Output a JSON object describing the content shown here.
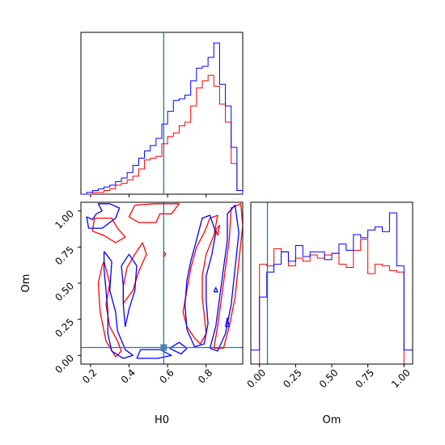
{
  "chart_data": [
    {
      "type": "histogram",
      "panel": "H0 marginal",
      "xlim": [
        0.15,
        0.99
      ],
      "x_ticks": [
        0.2,
        0.4,
        0.6,
        0.8
      ],
      "truth": 0.58,
      "series": [
        {
          "color": "#ff0000",
          "bin_edges": [
            0.15,
            0.18,
            0.21,
            0.24,
            0.27,
            0.3,
            0.33,
            0.36,
            0.39,
            0.42,
            0.45,
            0.48,
            0.51,
            0.54,
            0.57,
            0.6,
            0.63,
            0.66,
            0.69,
            0.72,
            0.75,
            0.78,
            0.81,
            0.84,
            0.87,
            0.9,
            0.93,
            0.96,
            0.99
          ],
          "counts": [
            0,
            0,
            1,
            1,
            2,
            3,
            5,
            6,
            8,
            10,
            14,
            19,
            20,
            21,
            28,
            32,
            34,
            38,
            40,
            49,
            59,
            63,
            66,
            60,
            50,
            40,
            17,
            2
          ]
        },
        {
          "color": "#0000ff",
          "bin_edges": [
            0.15,
            0.18,
            0.21,
            0.24,
            0.27,
            0.3,
            0.33,
            0.36,
            0.39,
            0.42,
            0.45,
            0.48,
            0.51,
            0.54,
            0.57,
            0.6,
            0.63,
            0.66,
            0.69,
            0.72,
            0.75,
            0.78,
            0.81,
            0.84,
            0.87,
            0.9,
            0.93,
            0.96,
            0.99
          ],
          "counts": [
            0,
            1,
            2,
            3,
            4,
            5,
            7,
            9,
            12,
            16,
            20,
            24,
            27,
            31,
            39,
            46,
            52,
            53,
            55,
            63,
            70,
            71,
            76,
            84,
            61,
            49,
            26,
            2
          ]
        }
      ]
    },
    {
      "type": "contour",
      "panel": "H0 vs Om",
      "xlabel": "H0",
      "ylabel": "Om",
      "xlim": [
        0.15,
        0.99
      ],
      "ylim": [
        -0.06,
        1.06
      ],
      "x_ticks": [
        0.2,
        0.4,
        0.6,
        0.8
      ],
      "y_ticks": [
        0.0,
        0.25,
        0.5,
        0.75,
        1.0
      ],
      "truth": {
        "H0": 0.58,
        "Om": 0.055
      },
      "series": [
        {
          "color": "#ff0000",
          "contours": [
            [
              [
                0.43,
                1.04
              ],
              [
                0.53,
                1.05
              ],
              [
                0.66,
                1.05
              ],
              [
                0.62,
                0.98
              ],
              [
                0.56,
                0.98
              ],
              [
                0.54,
                0.92
              ],
              [
                0.45,
                0.92
              ],
              [
                0.4,
                0.96
              ],
              [
                0.43,
                1.04
              ]
            ],
            [
              [
                0.22,
                0.95
              ],
              [
                0.31,
                0.95
              ],
              [
                0.34,
                0.88
              ],
              [
                0.38,
                0.82
              ],
              [
                0.33,
                0.78
              ],
              [
                0.27,
                0.83
              ],
              [
                0.21,
                0.86
              ],
              [
                0.22,
                0.95
              ]
            ],
            [
              [
                0.27,
                0.65
              ],
              [
                0.3,
                0.5
              ],
              [
                0.28,
                0.35
              ],
              [
                0.3,
                0.2
              ],
              [
                0.34,
                0.1
              ],
              [
                0.36,
                0.03
              ],
              [
                0.33,
                -0.01
              ],
              [
                0.28,
                0.1
              ],
              [
                0.25,
                0.3
              ],
              [
                0.24,
                0.5
              ],
              [
                0.26,
                0.62
              ],
              [
                0.27,
                0.65
              ]
            ],
            [
              [
                0.39,
                0.61
              ],
              [
                0.43,
                0.7
              ],
              [
                0.47,
                0.78
              ],
              [
                0.49,
                0.7
              ],
              [
                0.45,
                0.58
              ],
              [
                0.42,
                0.45
              ],
              [
                0.37,
                0.36
              ],
              [
                0.37,
                0.48
              ],
              [
                0.39,
                0.61
              ]
            ],
            [
              [
                0.74,
                0.12
              ],
              [
                0.7,
                0.2
              ],
              [
                0.68,
                0.3
              ],
              [
                0.7,
                0.45
              ],
              [
                0.72,
                0.6
              ],
              [
                0.75,
                0.75
              ],
              [
                0.79,
                0.85
              ],
              [
                0.82,
                0.95
              ],
              [
                0.86,
                0.97
              ],
              [
                0.84,
                0.83
              ],
              [
                0.8,
                0.7
              ],
              [
                0.78,
                0.55
              ],
              [
                0.78,
                0.4
              ],
              [
                0.79,
                0.28
              ],
              [
                0.8,
                0.15
              ],
              [
                0.77,
                0.08
              ],
              [
                0.74,
                0.12
              ]
            ],
            [
              [
                0.84,
                0.05
              ],
              [
                0.86,
                0.2
              ],
              [
                0.88,
                0.4
              ],
              [
                0.9,
                0.6
              ],
              [
                0.92,
                0.8
              ],
              [
                0.93,
                1.02
              ],
              [
                0.98,
                1.05
              ],
              [
                0.99,
                0.9
              ],
              [
                0.97,
                0.65
              ],
              [
                0.95,
                0.4
              ],
              [
                0.92,
                0.2
              ],
              [
                0.89,
                0.05
              ],
              [
                0.84,
                0.05
              ]
            ],
            [
              [
                0.85,
                0.87
              ],
              [
                0.87,
                0.9
              ],
              [
                0.86,
                0.83
              ],
              [
                0.85,
                0.87
              ]
            ],
            [
              [
                0.58,
                0.72
              ],
              [
                0.59,
                0.7
              ],
              [
                0.58,
                0.68
              ],
              [
                0.58,
                0.72
              ]
            ]
          ]
        },
        {
          "color": "#0000ff",
          "contours": [
            [
              [
                0.18,
                0.96
              ],
              [
                0.21,
                0.94
              ],
              [
                0.23,
                0.98
              ],
              [
                0.26,
                1.0
              ],
              [
                0.24,
                1.05
              ],
              [
                0.3,
                1.05
              ],
              [
                0.35,
                1.02
              ],
              [
                0.33,
                0.95
              ],
              [
                0.26,
                0.88
              ],
              [
                0.19,
                0.88
              ],
              [
                0.18,
                0.96
              ]
            ],
            [
              [
                0.27,
                0.72
              ],
              [
                0.31,
                0.65
              ],
              [
                0.3,
                0.45
              ],
              [
                0.33,
                0.3
              ],
              [
                0.34,
                0.17
              ],
              [
                0.38,
                0.04
              ],
              [
                0.42,
                0.0
              ],
              [
                0.37,
                -0.02
              ],
              [
                0.31,
                0.03
              ],
              [
                0.29,
                0.15
              ],
              [
                0.29,
                0.3
              ],
              [
                0.28,
                0.45
              ],
              [
                0.27,
                0.6
              ],
              [
                0.27,
                0.72
              ]
            ],
            [
              [
                0.36,
                0.62
              ],
              [
                0.4,
                0.7
              ],
              [
                0.44,
                0.62
              ],
              [
                0.43,
                0.45
              ],
              [
                0.4,
                0.32
              ],
              [
                0.38,
                0.2
              ],
              [
                0.37,
                0.35
              ],
              [
                0.37,
                0.48
              ],
              [
                0.36,
                0.62
              ]
            ],
            [
              [
                0.7,
                0.18
              ],
              [
                0.69,
                0.35
              ],
              [
                0.7,
                0.52
              ],
              [
                0.72,
                0.65
              ],
              [
                0.75,
                0.8
              ],
              [
                0.78,
                0.95
              ],
              [
                0.82,
                0.97
              ],
              [
                0.85,
                0.85
              ],
              [
                0.83,
                0.7
              ],
              [
                0.8,
                0.55
              ],
              [
                0.8,
                0.38
              ],
              [
                0.81,
                0.22
              ],
              [
                0.79,
                0.08
              ],
              [
                0.74,
                0.06
              ],
              [
                0.7,
                0.18
              ]
            ],
            [
              [
                0.82,
                0.05
              ],
              [
                0.85,
                0.2
              ],
              [
                0.87,
                0.4
              ],
              [
                0.89,
                0.6
              ],
              [
                0.91,
                0.8
              ],
              [
                0.91,
                0.98
              ],
              [
                0.95,
                1.04
              ],
              [
                0.97,
                0.85
              ],
              [
                0.95,
                0.6
              ],
              [
                0.93,
                0.35
              ],
              [
                0.9,
                0.15
              ],
              [
                0.86,
                0.03
              ],
              [
                0.82,
                0.05
              ]
            ],
            [
              [
                0.44,
                -0.02
              ],
              [
                0.46,
                0.04
              ],
              [
                0.56,
                0.04
              ],
              [
                0.62,
                0.0
              ],
              [
                0.55,
                -0.02
              ],
              [
                0.44,
                -0.02
              ]
            ],
            [
              [
                0.61,
                0.05
              ],
              [
                0.66,
                0.09
              ],
              [
                0.7,
                0.05
              ],
              [
                0.67,
                0.01
              ],
              [
                0.61,
                0.05
              ]
            ],
            [
              [
                0.84,
                0.44
              ],
              [
                0.85,
                0.47
              ],
              [
                0.86,
                0.44
              ],
              [
                0.84,
                0.44
              ]
            ],
            [
              [
                0.9,
                0.2
              ],
              [
                0.91,
                0.26
              ],
              [
                0.92,
                0.2
              ],
              [
                0.9,
                0.2
              ]
            ]
          ]
        }
      ]
    },
    {
      "type": "histogram",
      "panel": "Om marginal",
      "xlabel": "Om",
      "xlim": [
        -0.06,
        1.06
      ],
      "x_ticks": [
        0.0,
        0.25,
        0.5,
        0.75,
        1.0
      ],
      "tick_labels": [
        "0.00",
        "0.25",
        "0.50",
        "0.75",
        "1.00"
      ],
      "truth": 0.055,
      "series": [
        {
          "color": "#ff0000",
          "bin_edges": [
            0.0,
            0.05,
            0.1,
            0.15,
            0.2,
            0.25,
            0.3,
            0.35,
            0.4,
            0.45,
            0.5,
            0.55,
            0.6,
            0.65,
            0.7,
            0.75,
            0.8,
            0.85,
            0.9,
            0.95,
            1.0
          ],
          "counts": [
            64,
            63,
            74,
            72,
            63,
            68,
            66,
            70,
            68,
            70,
            71,
            64,
            62,
            73,
            80,
            58,
            64,
            63,
            60,
            59
          ]
        },
        {
          "color": "#0000ff",
          "bin_edges": [
            -0.06,
            0.0,
            0.05,
            0.1,
            0.15,
            0.2,
            0.25,
            0.3,
            0.35,
            0.4,
            0.45,
            0.5,
            0.55,
            0.6,
            0.65,
            0.7,
            0.75,
            0.8,
            0.85,
            0.9,
            0.95,
            1.0,
            1.06
          ],
          "counts": [
            9,
            43,
            59,
            64,
            72,
            66,
            76,
            69,
            72,
            72,
            67,
            71,
            77,
            73,
            83,
            81,
            86,
            88,
            85,
            97,
            63,
            9
          ]
        }
      ]
    }
  ],
  "axes": {
    "h0_ticks": [
      "0.2",
      "0.4",
      "0.6",
      "0.8"
    ],
    "om_ticks": [
      "0.00",
      "0.25",
      "0.50",
      "0.75",
      "1.00"
    ],
    "xlabel_h0": "H0",
    "xlabel_om": "Om",
    "ylabel_om": "Om"
  },
  "colors": {
    "series_red": "#ff0000",
    "series_blue": "#0000ff",
    "truth": "#1f77b4",
    "truth_marker": "#4682b4"
  }
}
